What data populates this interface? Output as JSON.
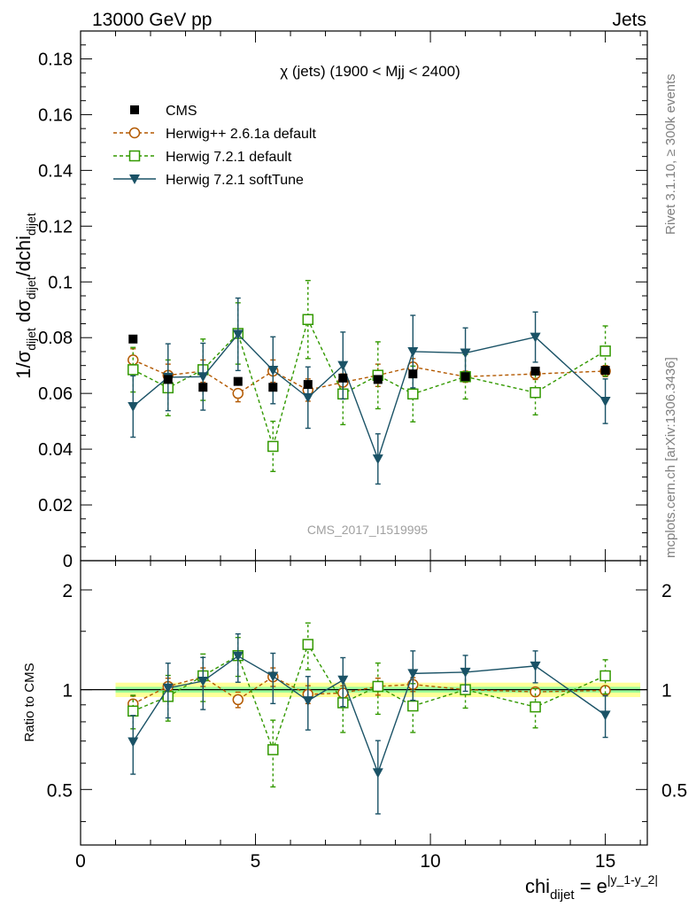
{
  "header": {
    "left": "13000 GeV pp",
    "right": "Jets"
  },
  "side_text": {
    "rivet": "Rivet 3.1.10, ≥ 300k events",
    "mcplots": "mcplots.cern.ch [arXiv:1306.3436]"
  },
  "watermark": "CMS_2017_I1519995",
  "colors": {
    "cms": "#000000",
    "herwigpp": "#b35900",
    "herwig721": "#339900",
    "softtune": "#1a5266",
    "band_yellow": "#ffff99",
    "band_green": "#99ff99"
  },
  "chart_data": [
    {
      "type": "line",
      "panel": "main",
      "title": "χ (jets) (1900 < Mjj < 2400)",
      "ylabel": "1/σ_dijet dσ_dijet/dchi_dijet",
      "ylabel_parts": {
        "a": "1/σ",
        "b": "dijet",
        "c": " dσ",
        "d": "dijet",
        "e": "/dchi",
        "f": "dijet"
      },
      "xlim": [
        0,
        16.2
      ],
      "ylim": [
        0,
        0.19
      ],
      "yticks": [
        0,
        0.02,
        0.04,
        0.06,
        0.08,
        0.1,
        0.12,
        0.14,
        0.16,
        0.18
      ],
      "ytick_labels": [
        "0",
        "0.02",
        "0.04",
        "0.06",
        "0.08",
        "0.1",
        "0.12",
        "0.14",
        "0.16",
        "0.18"
      ],
      "legend_position": "top-left",
      "series": [
        {
          "name": "CMS",
          "style": "data",
          "x": [
            1.5,
            2.5,
            3.5,
            4.5,
            5.5,
            6.5,
            7.5,
            8.5,
            9.5,
            11,
            13,
            15
          ],
          "y": [
            0.0795,
            0.065,
            0.0622,
            0.0643,
            0.0622,
            0.0632,
            0.0655,
            0.065,
            0.067,
            0.066,
            0.068,
            0.0683
          ],
          "err": [
            0.001,
            0.001,
            0.001,
            0.001,
            0.001,
            0.001,
            0.001,
            0.001,
            0.001,
            0.001,
            0.001,
            0.001
          ]
        },
        {
          "name": "Herwig++ 2.6.1a default",
          "style": "circle-dashed",
          "x": [
            1.5,
            2.5,
            3.5,
            4.5,
            5.5,
            6.5,
            7.5,
            8.5,
            9.5,
            11,
            13,
            15
          ],
          "y": [
            0.072,
            0.0665,
            0.068,
            0.06,
            0.068,
            0.0612,
            0.064,
            0.0665,
            0.0695,
            0.066,
            0.067,
            0.068
          ],
          "err": [
            0.004,
            0.004,
            0.004,
            0.003,
            0.004,
            0.004,
            0.003,
            0.004,
            0.003,
            0.002,
            0.002,
            0.002
          ]
        },
        {
          "name": "Herwig 7.2.1 default",
          "style": "square-dashed",
          "x": [
            1.5,
            2.5,
            3.5,
            4.5,
            5.5,
            6.5,
            7.5,
            8.5,
            9.5,
            11,
            13,
            15
          ],
          "y": [
            0.0685,
            0.062,
            0.0685,
            0.0815,
            0.041,
            0.0865,
            0.0598,
            0.0665,
            0.0598,
            0.066,
            0.0603,
            0.0752
          ],
          "err": [
            0.008,
            0.01,
            0.011,
            0.011,
            0.009,
            0.014,
            0.011,
            0.012,
            0.01,
            0.008,
            0.008,
            0.009
          ]
        },
        {
          "name": "Herwig 7.2.1 softTune",
          "style": "triangle-solid",
          "x": [
            1.5,
            2.5,
            3.5,
            4.5,
            5.5,
            6.5,
            7.5,
            8.5,
            9.5,
            11,
            13,
            15
          ],
          "y": [
            0.0553,
            0.0658,
            0.066,
            0.0812,
            0.0683,
            0.0585,
            0.07,
            0.0365,
            0.075,
            0.0745,
            0.0802,
            0.0572
          ],
          "err": [
            0.011,
            0.012,
            0.012,
            0.013,
            0.012,
            0.011,
            0.012,
            0.009,
            0.013,
            0.009,
            0.009,
            0.008
          ]
        }
      ]
    },
    {
      "type": "line",
      "panel": "ratio",
      "ylabel": "Ratio to CMS",
      "xlabel": "chi_dijet = e^|y_1-y_2|",
      "xlabel_parts": {
        "a": "chi",
        "b": "dijet",
        "c": " = e",
        "d": "|y_1-y_2|"
      },
      "xlim": [
        0,
        16.2
      ],
      "ylim": [
        0.34,
        2.45
      ],
      "scale": "log",
      "xticks": [
        0,
        5,
        10,
        15
      ],
      "xtick_labels": [
        "0",
        "5",
        "10",
        "15"
      ],
      "yticks": [
        0.5,
        1,
        2
      ],
      "ytick_labels": [
        "0.5",
        "1",
        "2"
      ],
      "reference_line": 1,
      "band": {
        "x": [
          1,
          16
        ],
        "yellow": [
          0.95,
          1.05
        ],
        "green": [
          0.98,
          1.02
        ]
      },
      "series": [
        {
          "name": "Herwig++ 2.6.1a default",
          "x": [
            1.5,
            2.5,
            3.5,
            4.5,
            5.5,
            6.5,
            7.5,
            8.5,
            9.5,
            11,
            13,
            15
          ],
          "y": [
            0.906,
            1.023,
            1.093,
            0.933,
            1.093,
            0.968,
            0.977,
            1.023,
            1.037,
            1.0,
            0.985,
            0.995
          ],
          "err": [
            0.05,
            0.06,
            0.07,
            0.05,
            0.07,
            0.06,
            0.05,
            0.06,
            0.05,
            0.03,
            0.03,
            0.03
          ]
        },
        {
          "name": "Herwig 7.2.1 default",
          "x": [
            1.5,
            2.5,
            3.5,
            4.5,
            5.5,
            6.5,
            7.5,
            8.5,
            9.5,
            11,
            13,
            15
          ],
          "y": [
            0.862,
            0.954,
            1.101,
            1.267,
            0.659,
            1.369,
            0.913,
            1.023,
            0.893,
            1.0,
            0.887,
            1.101
          ],
          "err": [
            0.1,
            0.15,
            0.18,
            0.17,
            0.15,
            0.22,
            0.17,
            0.18,
            0.15,
            0.12,
            0.12,
            0.13
          ]
        },
        {
          "name": "Herwig 7.2.1 softTune",
          "x": [
            1.5,
            2.5,
            3.5,
            4.5,
            5.5,
            6.5,
            7.5,
            8.5,
            9.5,
            11,
            13,
            15
          ],
          "y": [
            0.696,
            1.012,
            1.061,
            1.263,
            1.098,
            0.926,
            1.069,
            0.562,
            1.119,
            1.129,
            1.179,
            0.838
          ],
          "err": [
            0.14,
            0.19,
            0.19,
            0.21,
            0.19,
            0.17,
            0.18,
            0.14,
            0.19,
            0.14,
            0.13,
            0.12
          ]
        }
      ]
    }
  ]
}
